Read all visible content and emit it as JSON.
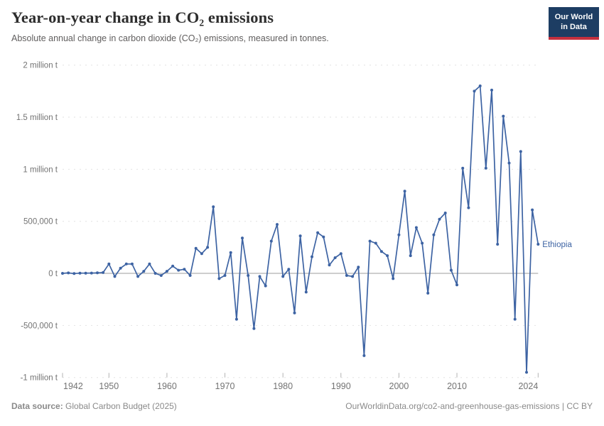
{
  "header": {
    "title": "Year-on-year change in CO₂ emissions",
    "subtitle": "Absolute annual change in carbon dioxide (CO₂) emissions, measured in tonnes."
  },
  "logo": {
    "line1": "Our World",
    "line2": "in Data",
    "bg_color": "#1d3d63",
    "bar_color": "#c5303e"
  },
  "chart_data": {
    "type": "line",
    "title": "Year-on-year change in CO₂ emissions",
    "xlabel": "",
    "ylabel": "",
    "unit": "t",
    "grid": "horizontal-dashed",
    "legend_position": "line-end-label",
    "end_label": "Ethiopia",
    "xlim": [
      1942,
      2024
    ],
    "ylim": [
      -1000000,
      2000000
    ],
    "x_ticks": [
      {
        "value": 1942,
        "label": "1942"
      },
      {
        "value": 1950,
        "label": "1950"
      },
      {
        "value": 1960,
        "label": "1960"
      },
      {
        "value": 1970,
        "label": "1970"
      },
      {
        "value": 1980,
        "label": "1980"
      },
      {
        "value": 1990,
        "label": "1990"
      },
      {
        "value": 2000,
        "label": "2000"
      },
      {
        "value": 2010,
        "label": "2010"
      },
      {
        "value": 2024,
        "label": "2024"
      }
    ],
    "y_ticks": [
      {
        "value": 2000000,
        "label": "2 million t"
      },
      {
        "value": 1500000,
        "label": "1.5 million t"
      },
      {
        "value": 1000000,
        "label": "1 million t"
      },
      {
        "value": 500000,
        "label": "500,000 t"
      },
      {
        "value": 0,
        "label": "0 t"
      },
      {
        "value": -500000,
        "label": "-500,000 t"
      },
      {
        "value": -1000000,
        "label": "-1 million t"
      }
    ],
    "x": [
      1942,
      1943,
      1944,
      1945,
      1946,
      1947,
      1948,
      1949,
      1950,
      1951,
      1952,
      1953,
      1954,
      1955,
      1956,
      1957,
      1958,
      1959,
      1960,
      1961,
      1962,
      1963,
      1964,
      1965,
      1966,
      1967,
      1968,
      1969,
      1970,
      1971,
      1972,
      1973,
      1974,
      1975,
      1976,
      1977,
      1978,
      1979,
      1980,
      1981,
      1982,
      1983,
      1984,
      1985,
      1986,
      1987,
      1988,
      1989,
      1990,
      1991,
      1992,
      1993,
      1994,
      1995,
      1996,
      1997,
      1998,
      1999,
      2000,
      2001,
      2002,
      2003,
      2004,
      2005,
      2006,
      2007,
      2008,
      2009,
      2010,
      2011,
      2012,
      2013,
      2014,
      2015,
      2016,
      2017,
      2018,
      2019,
      2020,
      2021,
      2022,
      2023,
      2024
    ],
    "series": [
      {
        "name": "Ethiopia",
        "color": "#3d63a3",
        "values": [
          0,
          4000,
          -2000,
          2000,
          2000,
          3000,
          5000,
          8000,
          90000,
          -30000,
          50000,
          90000,
          90000,
          -30000,
          20000,
          90000,
          0,
          -20000,
          20000,
          70000,
          30000,
          40000,
          -20000,
          240000,
          190000,
          250000,
          640000,
          -50000,
          -20000,
          200000,
          -440000,
          340000,
          -20000,
          -530000,
          -30000,
          -120000,
          310000,
          470000,
          -30000,
          40000,
          -380000,
          360000,
          -180000,
          160000,
          390000,
          350000,
          80000,
          150000,
          190000,
          -20000,
          -30000,
          60000,
          -790000,
          310000,
          290000,
          210000,
          170000,
          -50000,
          370000,
          790000,
          170000,
          440000,
          290000,
          -190000,
          370000,
          520000,
          580000,
          30000,
          -110000,
          1010000,
          630000,
          1750000,
          1800000,
          1010000,
          1760000,
          280000,
          1510000,
          1060000,
          -440000,
          1170000,
          -950000,
          610000,
          280000
        ]
      }
    ],
    "colors": {
      "gridline": "#e2e2e2",
      "zero_line": "#9e9e9e",
      "tick_label": "#737373",
      "tick_mark": "#b3b3b3"
    }
  },
  "footer": {
    "source_label": "Data source:",
    "source_text": " Global Carbon Budget (2025)",
    "credit": "OurWorldinData.org/co2-and-greenhouse-gas-emissions | CC BY"
  }
}
